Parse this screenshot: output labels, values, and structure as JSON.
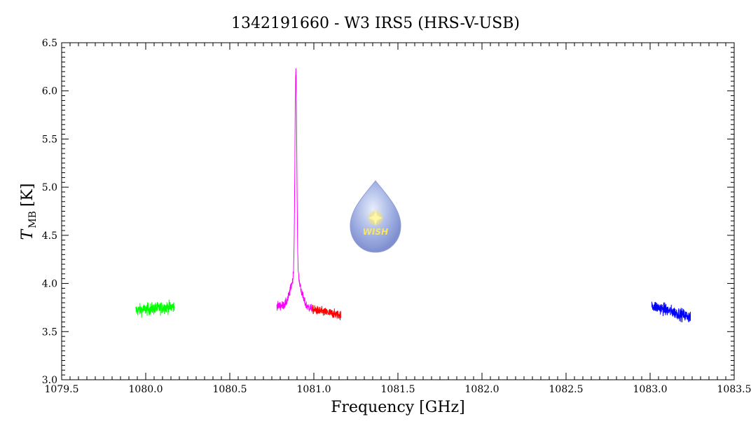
{
  "chart_data": {
    "type": "line",
    "title": "1342191660 - W3 IRS5 (HRS-V-USB)",
    "xlabel": "Frequency [GHz]",
    "ylabel_main": "T",
    "ylabel_sub": "MB",
    "ylabel_unit": "[K]",
    "xlim": [
      1079.5,
      1083.5
    ],
    "ylim": [
      3.0,
      6.5
    ],
    "xticks": [
      1079.5,
      1080.0,
      1080.5,
      1081.0,
      1081.5,
      1082.0,
      1082.5,
      1083.0,
      1083.5
    ],
    "xtick_labels": [
      "1079.5",
      "1080.0",
      "1080.5",
      "1081.0",
      "1081.5",
      "1082.0",
      "1082.5",
      "1083.0",
      "1083.5"
    ],
    "yticks": [
      3.0,
      3.5,
      4.0,
      4.5,
      5.0,
      5.5,
      6.0,
      6.5
    ],
    "ytick_labels": [
      "3.0",
      "3.5",
      "4.0",
      "4.5",
      "5.0",
      "5.5",
      "6.0",
      "6.5"
    ],
    "grid": false,
    "legend": "none",
    "series": [
      {
        "color": "#00ff00",
        "x_range": [
          1079.94,
          1080.17
        ],
        "baseline": [
          3.72,
          3.76
        ],
        "noise": 0.07,
        "peak": null
      },
      {
        "color": "#ff00ff",
        "x_range": [
          1080.78,
          1080.99
        ],
        "baseline": [
          3.77,
          3.74
        ],
        "noise": 0.05,
        "peak": {
          "center": 1080.893,
          "height": 2.1,
          "width": 0.0055,
          "wing": 0.35,
          "wing_width": 0.028
        }
      },
      {
        "color": "#ff0000",
        "x_range": [
          1080.99,
          1081.16
        ],
        "baseline": [
          3.73,
          3.67
        ],
        "noise": 0.05,
        "peak": null
      },
      {
        "color": "#0000ff",
        "x_range": [
          1083.01,
          1083.24
        ],
        "baseline": [
          3.77,
          3.65
        ],
        "noise": 0.07,
        "peak": null
      }
    ],
    "watermark": {
      "text": "WISH"
    }
  }
}
